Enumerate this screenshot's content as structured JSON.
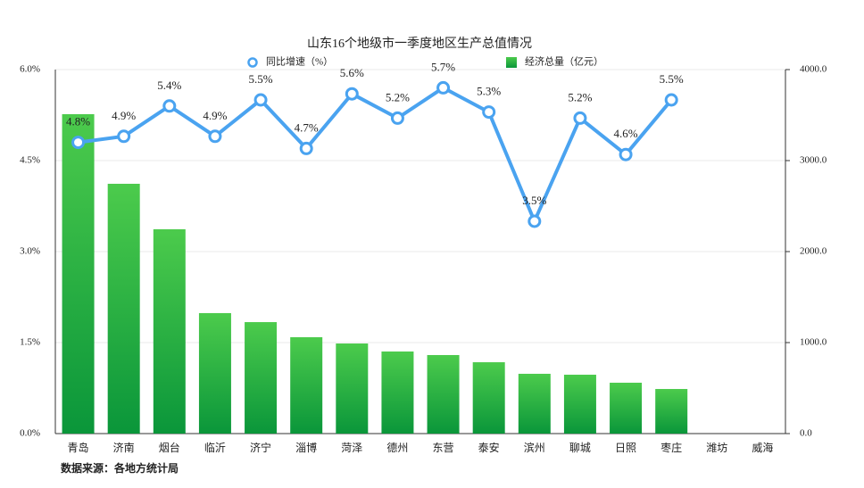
{
  "chart_data": {
    "type": "combo",
    "title": "山东16个地级市一季度地区生产总值情况",
    "source": "数据来源：各地方统计局",
    "categories": [
      "青岛",
      "济南",
      "烟台",
      "临沂",
      "济宁",
      "淄博",
      "菏泽",
      "德州",
      "东营",
      "泰安",
      "滨州",
      "聊城",
      "日照",
      "枣庄",
      "潍坊",
      "威海"
    ],
    "series": [
      {
        "name": "经济总量（亿元）",
        "type": "bar",
        "axis": "y2",
        "color": "#1db845",
        "values": [
          3510,
          2745,
          2245,
          1324,
          1225,
          1059,
          990,
          902,
          863,
          784,
          657,
          647,
          559,
          490,
          null,
          null
        ]
      },
      {
        "name": "同比增速（%）",
        "type": "line",
        "axis": "y",
        "color": "#4aa3f0",
        "values": [
          4.8,
          4.9,
          5.4,
          4.9,
          5.5,
          4.7,
          5.6,
          5.2,
          5.7,
          5.3,
          3.5,
          5.2,
          4.6,
          5.5,
          null,
          null
        ],
        "value_labels": [
          "4.8%",
          "4.9%",
          "5.4%",
          "4.9%",
          "5.5%",
          "4.7%",
          "5.6%",
          "5.2%",
          "5.7%",
          "5.3%",
          "3.5%",
          "5.2%",
          "4.6%",
          "5.5%",
          null,
          null
        ]
      }
    ],
    "ylim": [
      0,
      6
    ],
    "yticks": [
      {
        "value": 0,
        "label": "0.0%"
      },
      {
        "value": 1.5,
        "label": "1.5%"
      },
      {
        "value": 3,
        "label": "3.0%"
      },
      {
        "value": 4.5,
        "label": "4.5%"
      },
      {
        "value": 6,
        "label": "6.0%"
      }
    ],
    "y2lim": [
      0,
      4000
    ],
    "y2ticks": [
      {
        "value": 0,
        "label": "0.0"
      },
      {
        "value": 1000,
        "label": "1000.0"
      },
      {
        "value": 2000,
        "label": "2000.0"
      },
      {
        "value": 3000,
        "label": "3000.0"
      },
      {
        "value": 4000,
        "label": "4000.0"
      }
    ],
    "grid": true
  }
}
